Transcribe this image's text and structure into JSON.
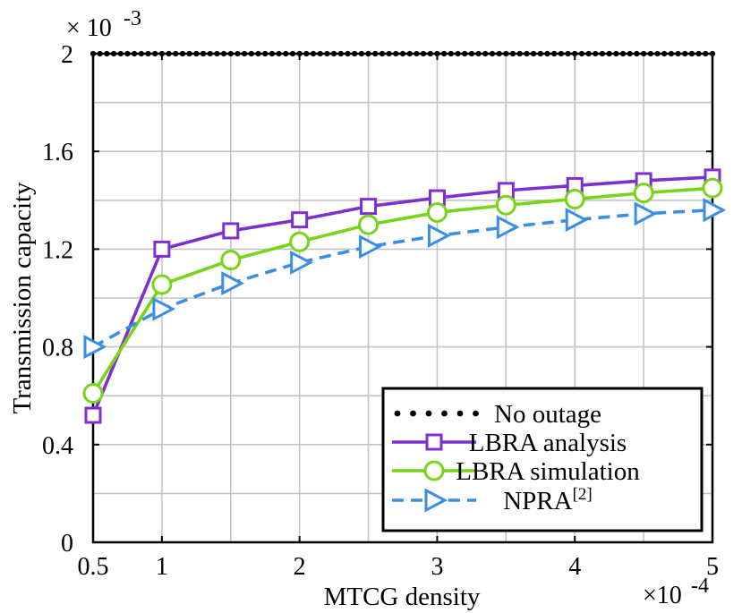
{
  "chart_data": {
    "type": "line",
    "xlabel": "MTCG density",
    "ylabel": "Transmission capacity",
    "x_multiplier": "×10-4",
    "y_multiplier": "× 10-3",
    "x_multiplier_base": "×10",
    "x_multiplier_exp": "-4",
    "y_multiplier_base": "× 10",
    "y_multiplier_exp": "-3",
    "xlim": [
      0.5,
      5
    ],
    "ylim": [
      0,
      2
    ],
    "x_ticks": [
      0.5,
      1,
      2,
      3,
      4,
      5
    ],
    "x_tick_labels": [
      "0.5",
      "1",
      "2",
      "3",
      "4",
      "5"
    ],
    "y_ticks": [
      0,
      0.4,
      0.8,
      1.2,
      1.6,
      2
    ],
    "y_tick_labels": [
      "0",
      "0.4",
      "0.8",
      "1.2",
      "1.6",
      "2"
    ],
    "x_grid": [
      0.5,
      1,
      1.5,
      2,
      2.5,
      3,
      3.5,
      4,
      4.5,
      5
    ],
    "y_grid": [
      0,
      0.2,
      0.4,
      0.6,
      0.8,
      1,
      1.2,
      1.4,
      1.6,
      1.8,
      2
    ],
    "grid": true,
    "legend_position": "bottom-right",
    "series": [
      {
        "name": "No outage",
        "legend_label": "No outage",
        "color": "#000000",
        "marker": "dot",
        "line": "dotted",
        "x": [
          0.5,
          0.55,
          0.6,
          0.65,
          0.7,
          0.75,
          0.8,
          0.85,
          0.9,
          0.95,
          1,
          1.05,
          1.1,
          1.15,
          1.2,
          1.25,
          1.3,
          1.35,
          1.4,
          1.45,
          1.5,
          1.55,
          1.6,
          1.65,
          1.7,
          1.75,
          1.8,
          1.85,
          1.9,
          1.95,
          2,
          2.05,
          2.1,
          2.15,
          2.2,
          2.25,
          2.3,
          2.35,
          2.4,
          2.45,
          2.5,
          2.55,
          2.6,
          2.65,
          2.7,
          2.75,
          2.8,
          2.85,
          2.9,
          2.95,
          3,
          3.05,
          3.1,
          3.15,
          3.2,
          3.25,
          3.3,
          3.35,
          3.4,
          3.45,
          3.5,
          3.55,
          3.6,
          3.65,
          3.7,
          3.75,
          3.8,
          3.85,
          3.9,
          3.95,
          4,
          4.05,
          4.1,
          4.15,
          4.2,
          4.25,
          4.3,
          4.35,
          4.4,
          4.45,
          4.5,
          4.55,
          4.6,
          4.65,
          4.7,
          4.75,
          4.8,
          4.85,
          4.9,
          4.95,
          5
        ],
        "values": [
          2,
          2,
          2,
          2,
          2,
          2,
          2,
          2,
          2,
          2,
          2,
          2,
          2,
          2,
          2,
          2,
          2,
          2,
          2,
          2,
          2,
          2,
          2,
          2,
          2,
          2,
          2,
          2,
          2,
          2,
          2,
          2,
          2,
          2,
          2,
          2,
          2,
          2,
          2,
          2,
          2,
          2,
          2,
          2,
          2,
          2,
          2,
          2,
          2,
          2,
          2,
          2,
          2,
          2,
          2,
          2,
          2,
          2,
          2,
          2,
          2,
          2,
          2,
          2,
          2,
          2,
          2,
          2,
          2,
          2,
          2,
          2,
          2,
          2,
          2,
          2,
          2,
          2,
          2,
          2,
          2,
          2,
          2,
          2,
          2,
          2,
          2,
          2,
          2,
          2,
          2
        ]
      },
      {
        "name": "LBRA analysis",
        "legend_label": "LBRA analysis",
        "color": "#7e2fd0",
        "marker": "square",
        "line": "solid",
        "x": [
          0.5,
          1,
          1.5,
          2,
          2.5,
          3,
          3.5,
          4,
          4.5,
          5
        ],
        "values": [
          0.52,
          1.2,
          1.275,
          1.32,
          1.375,
          1.41,
          1.44,
          1.46,
          1.48,
          1.495
        ]
      },
      {
        "name": "LBRA simulation",
        "legend_label": "LBRA simulation",
        "color": "#77d41a",
        "marker": "circle",
        "line": "solid",
        "x": [
          0.5,
          1,
          1.5,
          2,
          2.5,
          3,
          3.5,
          4,
          4.5,
          5
        ],
        "values": [
          0.61,
          1.055,
          1.155,
          1.23,
          1.3,
          1.35,
          1.38,
          1.405,
          1.43,
          1.45
        ]
      },
      {
        "name": "NPRA[2]",
        "legend_label": "NPRA",
        "legend_superscript": "[2]",
        "color": "#3a8ee6",
        "marker": "triangle-right",
        "line": "dashed",
        "x": [
          0.5,
          1,
          1.5,
          2,
          2.5,
          3,
          3.5,
          4,
          4.5,
          5
        ],
        "values": [
          0.8,
          0.955,
          1.06,
          1.145,
          1.21,
          1.255,
          1.29,
          1.32,
          1.345,
          1.36
        ]
      }
    ]
  }
}
